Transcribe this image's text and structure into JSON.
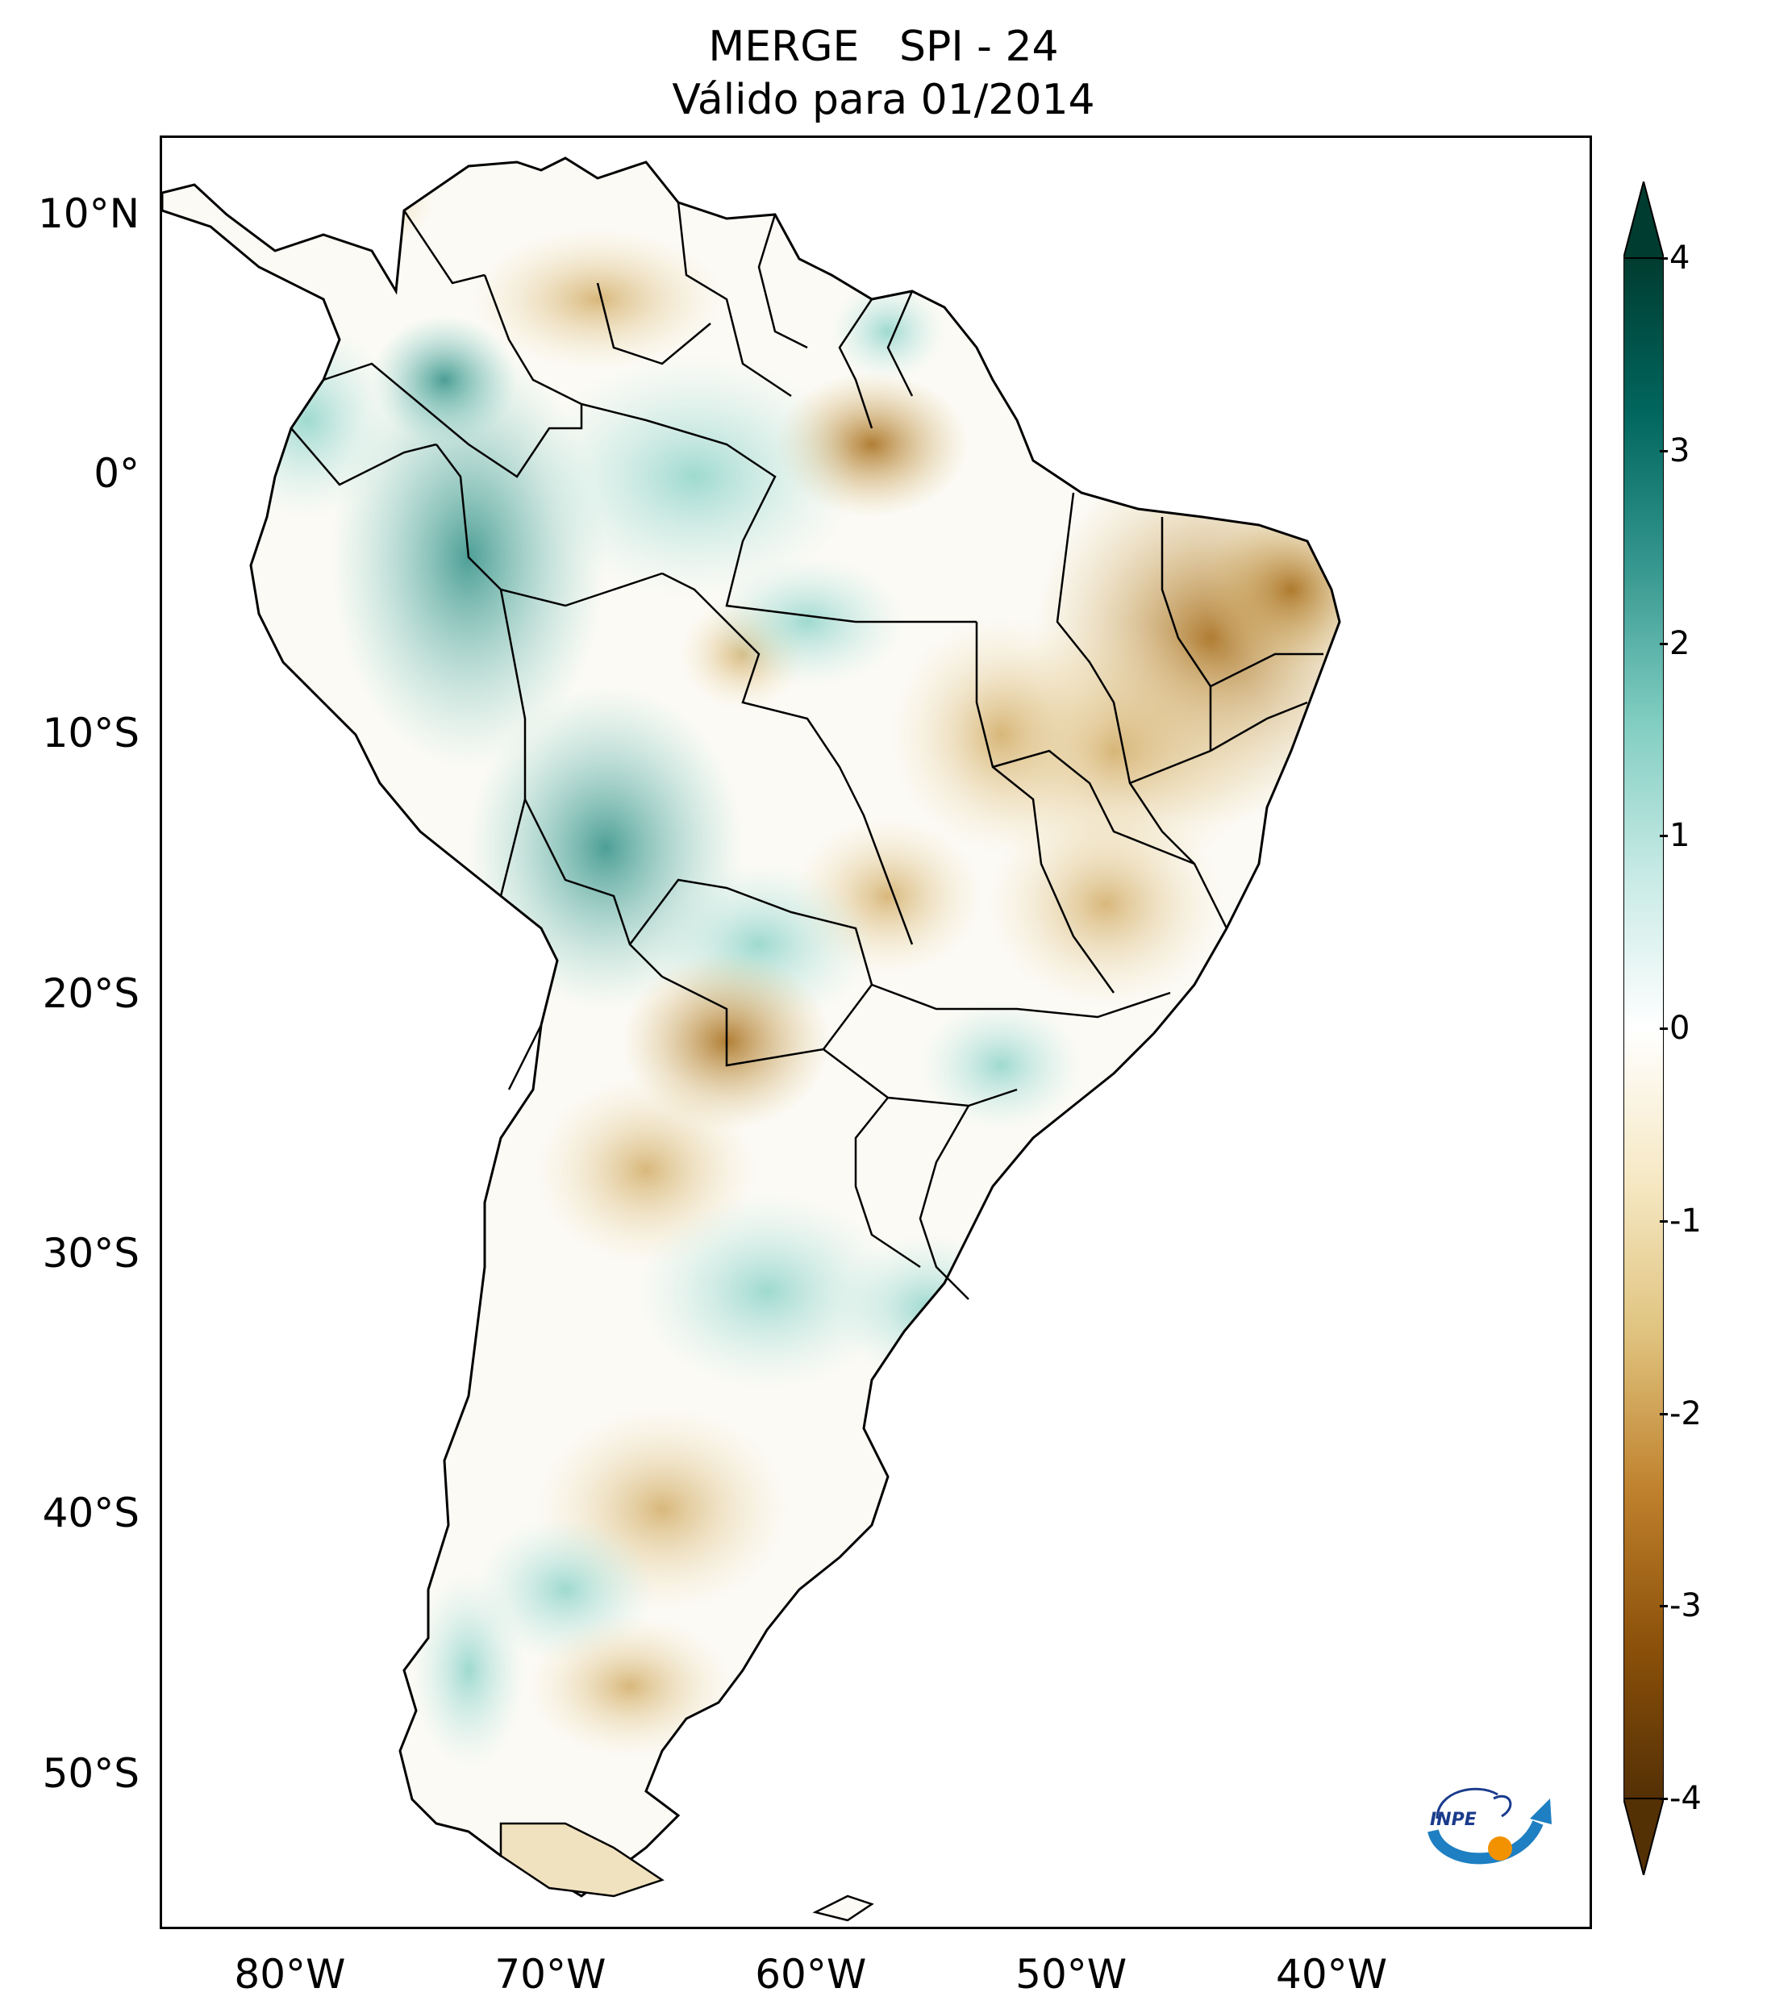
{
  "title": {
    "line1": "MERGE   SPI - 24",
    "line2": "Válido para 01/2014"
  },
  "map": {
    "lat_labels": [
      "10°N",
      "0°",
      "10°S",
      "20°S",
      "30°S",
      "40°S",
      "50°S"
    ],
    "lon_labels": [
      "80°W",
      "70°W",
      "60°W",
      "50°W",
      "40°W"
    ],
    "lat_values": [
      10,
      0,
      -10,
      -20,
      -30,
      -40,
      -50
    ],
    "lon_values": [
      -80,
      -70,
      -60,
      -50,
      -40
    ],
    "extent": {
      "lon_min": -85,
      "lon_max": -30,
      "lat_min": -56,
      "lat_max": 13
    }
  },
  "colorbar": {
    "min": -4,
    "max": 4,
    "ticks": [
      4,
      3,
      2,
      1,
      0,
      -1,
      -2,
      -3,
      -4
    ],
    "tick_labels": [
      "4",
      "3",
      "2",
      "1",
      "0",
      "-1",
      "-2",
      "-3",
      "-4"
    ],
    "colormap": "BrBG",
    "colors": [
      "#543005",
      "#8c510a",
      "#bf812d",
      "#dfc27d",
      "#f6e8c3",
      "#ffffff",
      "#c7eae5",
      "#80cdc1",
      "#35978f",
      "#01665e",
      "#003c30"
    ]
  },
  "logo": {
    "text": "INPE"
  }
}
